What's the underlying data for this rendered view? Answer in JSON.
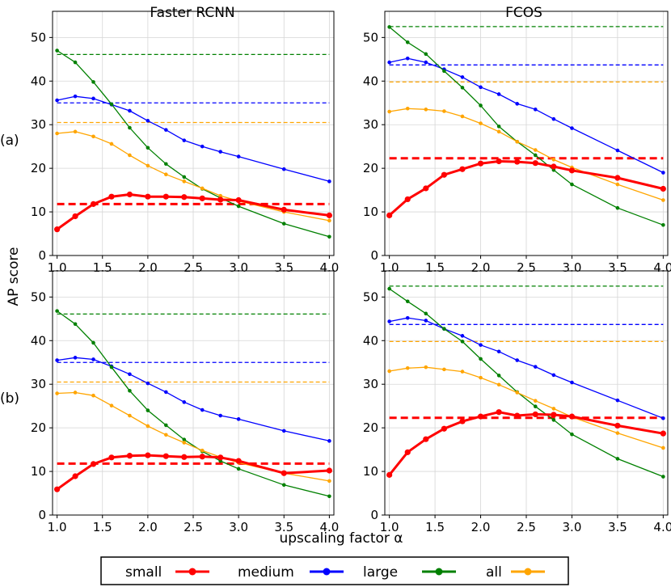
{
  "figure": {
    "ylabel": "AP score",
    "xlabel": "upscaling factor α",
    "row_labels": [
      "(a)",
      "(b)"
    ],
    "column_titles": [
      "Faster RCNN",
      "FCOS"
    ],
    "x_ticks": [
      1.0,
      1.5,
      2.0,
      2.5,
      3.0,
      3.5,
      4.0
    ],
    "x_tick_labels": [
      "1.0",
      "1.5",
      "2.0",
      "2.5",
      "3.0",
      "3.5",
      "4.0"
    ],
    "y_ticks": [
      0,
      10,
      20,
      30,
      40,
      50
    ],
    "y_tick_labels": [
      "0",
      "10",
      "20",
      "30",
      "40",
      "50"
    ]
  },
  "legend": {
    "placement": "bottom-center",
    "items": [
      {
        "label": "small",
        "color": "#ff0000"
      },
      {
        "label": "medium",
        "color": "#0000ff"
      },
      {
        "label": "large",
        "color": "#008000"
      },
      {
        "label": "all",
        "color": "#ffa500"
      }
    ]
  },
  "chart_data": [
    {
      "type": "line",
      "title": "Faster RCNN",
      "row": "(a)",
      "xlabel": "upscaling factor α",
      "ylabel": "AP score",
      "xlim": [
        0.95,
        4.05
      ],
      "ylim": [
        0,
        56
      ],
      "grid": true,
      "x": [
        1.0,
        1.2,
        1.4,
        1.6,
        1.8,
        2.0,
        2.2,
        2.4,
        2.6,
        2.8,
        3.0,
        3.5,
        4.0
      ],
      "series": [
        {
          "name": "small",
          "color": "#ff0000",
          "values": [
            6.0,
            9.0,
            11.8,
            13.5,
            14.0,
            13.5,
            13.5,
            13.4,
            13.1,
            12.8,
            12.7,
            10.5,
            9.2
          ],
          "baseline": 11.8
        },
        {
          "name": "medium",
          "color": "#0000ff",
          "values": [
            35.6,
            36.5,
            36.0,
            34.6,
            33.2,
            30.9,
            28.8,
            26.4,
            25.0,
            23.8,
            22.7,
            19.8,
            17.0
          ],
          "baseline": 35.0
        },
        {
          "name": "large",
          "color": "#008000",
          "values": [
            47.0,
            44.3,
            39.8,
            34.7,
            29.3,
            24.7,
            21.0,
            18.0,
            15.3,
            13.2,
            11.3,
            7.3,
            4.3
          ],
          "baseline": 46.1
        },
        {
          "name": "all",
          "color": "#ffa500",
          "values": [
            28.0,
            28.4,
            27.3,
            25.6,
            23.0,
            20.6,
            18.6,
            17.0,
            15.4,
            13.7,
            12.5,
            10.0,
            8.0
          ],
          "baseline": 30.5
        }
      ]
    },
    {
      "type": "line",
      "title": "FCOS",
      "row": "(a)",
      "xlabel": "upscaling factor α",
      "ylabel": "AP score",
      "xlim": [
        0.95,
        4.05
      ],
      "ylim": [
        0,
        56
      ],
      "grid": true,
      "x": [
        1.0,
        1.2,
        1.4,
        1.6,
        1.8,
        2.0,
        2.2,
        2.4,
        2.6,
        2.8,
        3.0,
        3.5,
        4.0
      ],
      "series": [
        {
          "name": "small",
          "color": "#ff0000",
          "values": [
            9.2,
            12.9,
            15.4,
            18.5,
            19.8,
            21.1,
            21.6,
            21.5,
            21.2,
            20.4,
            19.5,
            17.8,
            15.3
          ],
          "baseline": 22.3
        },
        {
          "name": "medium",
          "color": "#0000ff",
          "values": [
            44.3,
            45.2,
            44.3,
            42.7,
            40.9,
            38.6,
            37.0,
            34.8,
            33.5,
            31.3,
            29.2,
            24.1,
            19.0
          ],
          "baseline": 43.7
        },
        {
          "name": "large",
          "color": "#008000",
          "values": [
            52.4,
            48.9,
            46.2,
            42.3,
            38.5,
            34.4,
            29.6,
            26.1,
            23.0,
            19.6,
            16.3,
            10.9,
            7.0
          ],
          "baseline": 52.5
        },
        {
          "name": "all",
          "color": "#ffa500",
          "values": [
            33.0,
            33.7,
            33.5,
            33.1,
            31.9,
            30.3,
            28.4,
            26.1,
            24.2,
            22.0,
            20.2,
            16.3,
            12.7
          ],
          "baseline": 39.8
        }
      ]
    },
    {
      "type": "line",
      "title": "Faster RCNN",
      "row": "(b)",
      "xlabel": "upscaling factor α",
      "ylabel": "AP score",
      "xlim": [
        0.95,
        4.05
      ],
      "ylim": [
        0,
        56
      ],
      "grid": true,
      "x": [
        1.0,
        1.2,
        1.4,
        1.6,
        1.8,
        2.0,
        2.2,
        2.4,
        2.6,
        2.8,
        3.0,
        3.5,
        4.0
      ],
      "series": [
        {
          "name": "small",
          "color": "#ff0000",
          "values": [
            5.9,
            8.9,
            11.7,
            13.2,
            13.6,
            13.7,
            13.5,
            13.3,
            13.4,
            13.2,
            12.4,
            9.6,
            10.2
          ],
          "baseline": 11.8
        },
        {
          "name": "medium",
          "color": "#0000ff",
          "values": [
            35.5,
            36.1,
            35.7,
            34.1,
            32.3,
            30.2,
            28.2,
            25.9,
            24.1,
            22.8,
            22.0,
            19.3,
            17.0
          ],
          "baseline": 35.0
        },
        {
          "name": "large",
          "color": "#008000",
          "values": [
            46.8,
            43.8,
            39.5,
            33.9,
            28.5,
            24.0,
            20.6,
            17.3,
            14.6,
            12.4,
            10.6,
            6.9,
            4.3
          ],
          "baseline": 46.1
        },
        {
          "name": "all",
          "color": "#ffa500",
          "values": [
            27.9,
            28.1,
            27.4,
            25.1,
            22.8,
            20.4,
            18.4,
            16.6,
            14.8,
            13.3,
            12.0,
            9.6,
            7.8
          ],
          "baseline": 30.5
        }
      ]
    },
    {
      "type": "line",
      "title": "FCOS",
      "row": "(b)",
      "xlabel": "upscaling factor α",
      "ylabel": "AP score",
      "xlim": [
        0.95,
        4.05
      ],
      "ylim": [
        0,
        56
      ],
      "grid": true,
      "x": [
        1.0,
        1.2,
        1.4,
        1.6,
        1.8,
        2.0,
        2.2,
        2.4,
        2.6,
        2.8,
        3.0,
        3.5,
        4.0
      ],
      "series": [
        {
          "name": "small",
          "color": "#ff0000",
          "values": [
            9.2,
            14.4,
            17.4,
            19.8,
            21.5,
            22.6,
            23.6,
            22.8,
            23.1,
            23.0,
            22.6,
            20.5,
            18.7
          ],
          "baseline": 22.3
        },
        {
          "name": "medium",
          "color": "#0000ff",
          "values": [
            44.4,
            45.2,
            44.6,
            42.7,
            41.1,
            39.0,
            37.5,
            35.5,
            34.0,
            32.1,
            30.4,
            26.3,
            22.2
          ],
          "baseline": 43.7
        },
        {
          "name": "large",
          "color": "#008000",
          "values": [
            51.9,
            49.0,
            46.2,
            42.7,
            39.8,
            35.8,
            32.0,
            28.2,
            24.9,
            21.8,
            18.5,
            12.9,
            8.8
          ],
          "baseline": 52.5
        },
        {
          "name": "all",
          "color": "#ffa500",
          "values": [
            33.0,
            33.7,
            33.9,
            33.4,
            32.9,
            31.5,
            29.9,
            28.1,
            26.2,
            24.4,
            22.5,
            18.8,
            15.4
          ],
          "baseline": 39.8
        }
      ]
    }
  ]
}
